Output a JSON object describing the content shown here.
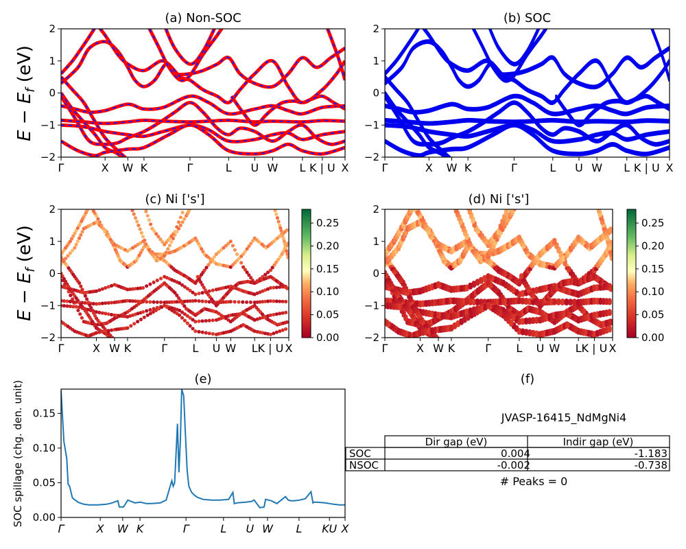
{
  "figure": {
    "ylabel_top": "E − E",
    "ylabel_sub": "f",
    "ylabel_unit": " (eV)",
    "colorbar_ticks": [
      "0.25",
      "0.20",
      "0.15",
      "0.10",
      "0.05",
      "0.00"
    ]
  },
  "chart_data": [
    {
      "id": "a",
      "type": "line",
      "title": "(a) Non-SOC",
      "ylim": [
        -2,
        2
      ],
      "yticks": [
        "2",
        "1",
        "0",
        "−1",
        "−2"
      ],
      "xticks": [
        "Γ",
        "X",
        "W",
        "K",
        "Γ",
        "L",
        "U",
        "W",
        "L",
        "K | U",
        "X"
      ],
      "colors": {
        "bands": "#ff0000",
        "overlay": "#1a1aff"
      },
      "style": "dashed-overlay"
    },
    {
      "id": "b",
      "type": "line",
      "title": "(b) SOC",
      "ylim": [
        -2,
        2
      ],
      "yticks": [
        "2",
        "1",
        "0",
        "−1",
        "−2"
      ],
      "xticks": [
        "Γ",
        "X",
        "W",
        "K",
        "Γ",
        "L",
        "U",
        "W",
        "L",
        "K | U",
        "X"
      ],
      "colors": {
        "bands": "#0000ee"
      },
      "style": "thick"
    },
    {
      "id": "c",
      "type": "scatter",
      "title": "(c)  Ni ['s']",
      "ylim": [
        -2,
        2
      ],
      "yticks": [
        "2",
        "1",
        "0",
        "−1",
        "−2"
      ],
      "xticks": [
        "Γ",
        "X",
        "W",
        "K",
        "Γ",
        "L",
        "U",
        "W",
        "L",
        "K | U",
        "X"
      ],
      "colorbar_range": [
        0.0,
        0.28
      ],
      "colormap": "RdYlGn"
    },
    {
      "id": "d",
      "type": "scatter",
      "title": "(d) Ni ['s']",
      "ylim": [
        -2,
        2
      ],
      "yticks": [
        "2",
        "1",
        "0",
        "−1",
        "−2"
      ],
      "xticks": [
        "Γ",
        "X",
        "W",
        "K",
        "Γ",
        "L",
        "U",
        "W",
        "L",
        "K | U",
        "X"
      ],
      "colorbar_range": [
        0.0,
        0.28
      ],
      "colormap": "RdYlGn"
    },
    {
      "id": "e",
      "type": "line",
      "title": "(e)",
      "ylabel": "SOC spillage (chg. den. unit)",
      "ylim": [
        0.0,
        0.185
      ],
      "yticks": [
        "0.15",
        "0.10",
        "0.05",
        "0.00"
      ],
      "xticks": [
        "Γ",
        "X",
        "W",
        "K",
        "Γ",
        "L",
        "U",
        "W",
        "L",
        "KU",
        "X"
      ],
      "x": [
        0.0,
        0.01,
        0.02,
        0.025,
        0.03,
        0.04,
        0.06,
        0.08,
        0.1,
        0.13,
        0.16,
        0.18,
        0.2,
        0.205,
        0.22,
        0.235,
        0.26,
        0.28,
        0.3,
        0.32,
        0.35,
        0.37,
        0.39,
        0.395,
        0.4,
        0.41,
        0.415,
        0.42,
        0.425,
        0.432,
        0.438,
        0.444,
        0.45,
        0.46,
        0.47,
        0.48,
        0.5,
        0.53,
        0.56,
        0.59,
        0.605,
        0.61,
        0.62,
        0.65,
        0.67,
        0.68,
        0.7,
        0.715,
        0.72,
        0.74,
        0.76,
        0.79,
        0.8,
        0.81,
        0.82,
        0.84,
        0.86,
        0.88,
        0.887,
        0.89,
        0.9,
        0.93,
        0.96,
        0.98,
        1.0
      ],
      "values": [
        0.183,
        0.11,
        0.085,
        0.048,
        0.045,
        0.028,
        0.022,
        0.019,
        0.018,
        0.018,
        0.019,
        0.021,
        0.024,
        0.015,
        0.015,
        0.025,
        0.021,
        0.022,
        0.02,
        0.02,
        0.021,
        0.025,
        0.053,
        0.045,
        0.05,
        0.135,
        0.065,
        0.11,
        0.185,
        0.175,
        0.12,
        0.068,
        0.045,
        0.036,
        0.032,
        0.029,
        0.026,
        0.025,
        0.025,
        0.026,
        0.036,
        0.02,
        0.021,
        0.022,
        0.023,
        0.025,
        0.014,
        0.015,
        0.026,
        0.024,
        0.02,
        0.03,
        0.025,
        0.024,
        0.024,
        0.025,
        0.027,
        0.037,
        0.021,
        0.022,
        0.022,
        0.021,
        0.019,
        0.018,
        0.018
      ],
      "color": "#1f77b4"
    },
    {
      "id": "f",
      "type": "table",
      "title": "(f)",
      "material": "JVASP-16415_NdMgNi4",
      "columns": [
        "Dir gap (eV)",
        "Indir gap (eV)"
      ],
      "rows": [
        {
          "label": "SOC",
          "dir": "0.004",
          "indir": "-1.183"
        },
        {
          "label": "NSOC",
          "dir": "-0.002",
          "indir": "-0.738"
        }
      ],
      "peaks_text": "# Peaks = 0"
    }
  ]
}
